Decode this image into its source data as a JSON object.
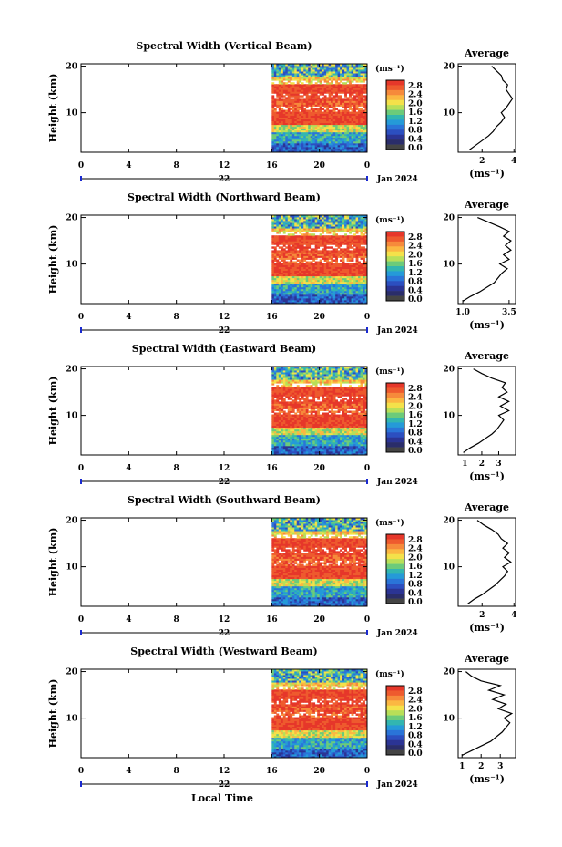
{
  "figure": {
    "xlabel": "Local Time",
    "date_label": "Jan 2024",
    "day_label": "22"
  },
  "chart_data": [
    {
      "type": "heatmap",
      "title": "Spectral Width (Vertical Beam)",
      "ylabel": "Height (km)",
      "xlim": [
        0,
        24
      ],
      "xticks": [
        "0",
        "4",
        "8",
        "12",
        "16",
        "20",
        "0"
      ],
      "ylim": [
        1.5,
        20.5
      ],
      "yticks": [
        "10",
        "20"
      ],
      "data_start_hour": 16,
      "colorbar": {
        "unit": "(ms⁻¹)",
        "ticks": [
          "2.8",
          "2.4",
          "2.0",
          "1.6",
          "1.2",
          "0.8",
          "0.4",
          "0.0"
        ],
        "colors": [
          "#e6372a",
          "#ee5a2e",
          "#f68a3b",
          "#fbb742",
          "#f4e14a",
          "#b8df58",
          "#6ccb7a",
          "#32b6b0",
          "#259ad8",
          "#2a74d8",
          "#2c4fc0",
          "#2b3494",
          "#2a2d6a",
          "#444444"
        ]
      },
      "profile": {
        "title": "Average",
        "xlabel": "(ms⁻¹)",
        "xlim": [
          0.5,
          4.1
        ],
        "xticks": [
          "2",
          "4"
        ],
        "heights": [
          2,
          3,
          4,
          5,
          6,
          7,
          8,
          9,
          10,
          11,
          12,
          13,
          14,
          15,
          16,
          17,
          18,
          19,
          20
        ],
        "values": [
          1.2,
          1.6,
          2.0,
          2.4,
          2.7,
          2.9,
          3.2,
          3.4,
          3.2,
          3.5,
          3.7,
          3.9,
          3.7,
          3.5,
          3.6,
          3.3,
          3.2,
          2.9,
          2.6
        ]
      }
    },
    {
      "type": "heatmap",
      "title": "Spectral Width (Northward Beam)",
      "ylabel": "Height (km)",
      "xlim": [
        0,
        24
      ],
      "xticks": [
        "0",
        "4",
        "8",
        "12",
        "16",
        "20",
        "0"
      ],
      "ylim": [
        1.5,
        20.5
      ],
      "yticks": [
        "10",
        "20"
      ],
      "data_start_hour": 16,
      "colorbar": {
        "unit": "(ms⁻¹)",
        "ticks": [
          "2.8",
          "2.4",
          "2.0",
          "1.6",
          "1.2",
          "0.8",
          "0.4",
          "0.0"
        ],
        "colors": [
          "#e6372a",
          "#ee5a2e",
          "#f68a3b",
          "#fbb742",
          "#f4e14a",
          "#b8df58",
          "#6ccb7a",
          "#32b6b0",
          "#259ad8",
          "#2a74d8",
          "#2c4fc0",
          "#2b3494",
          "#2a2d6a",
          "#444444"
        ]
      },
      "profile": {
        "title": "Average",
        "xlabel": "(ms⁻¹)",
        "xlim": [
          0.75,
          3.85
        ],
        "xticks": [
          "1.0",
          "3.5"
        ],
        "heights": [
          2,
          3,
          4,
          5,
          6,
          7,
          8,
          9,
          10,
          11,
          12,
          13,
          14,
          15,
          16,
          17,
          18,
          19,
          20
        ],
        "values": [
          1.0,
          1.4,
          1.9,
          2.3,
          2.7,
          2.9,
          3.1,
          3.4,
          3.0,
          3.5,
          3.2,
          3.6,
          3.3,
          3.6,
          3.2,
          3.5,
          3.0,
          2.4,
          1.8
        ]
      }
    },
    {
      "type": "heatmap",
      "title": "Spectral Width (Eastward Beam)",
      "ylabel": "Height (km)",
      "xlim": [
        0,
        24
      ],
      "xticks": [
        "0",
        "4",
        "8",
        "12",
        "16",
        "20",
        "0"
      ],
      "ylim": [
        1.5,
        20.5
      ],
      "yticks": [
        "10",
        "20"
      ],
      "data_start_hour": 16,
      "colorbar": {
        "unit": "(ms⁻¹)",
        "ticks": [
          "2.8",
          "2.4",
          "2.0",
          "1.6",
          "1.2",
          "0.8",
          "0.4",
          "0.0"
        ],
        "colors": [
          "#e6372a",
          "#ee5a2e",
          "#f68a3b",
          "#fbb742",
          "#f4e14a",
          "#b8df58",
          "#6ccb7a",
          "#32b6b0",
          "#259ad8",
          "#2a74d8",
          "#2c4fc0",
          "#2b3494",
          "#2a2d6a",
          "#444444"
        ]
      },
      "profile": {
        "title": "Average",
        "xlabel": "(ms⁻¹)",
        "xlim": [
          0.6,
          4.0
        ],
        "xticks": [
          "1",
          "2",
          "3"
        ],
        "heights": [
          2,
          3,
          4,
          5,
          6,
          7,
          8,
          9,
          10,
          11,
          12,
          13,
          14,
          15,
          16,
          17,
          18,
          19,
          20
        ],
        "values": [
          0.9,
          1.3,
          1.8,
          2.2,
          2.6,
          2.9,
          3.1,
          3.3,
          3.0,
          3.6,
          3.1,
          3.6,
          3.0,
          3.5,
          3.2,
          3.4,
          2.6,
          2.0,
          1.5
        ]
      }
    },
    {
      "type": "heatmap",
      "title": "Spectral Width (Southward Beam)",
      "ylabel": "Height (km)",
      "xlim": [
        0,
        24
      ],
      "xticks": [
        "0",
        "4",
        "8",
        "12",
        "16",
        "20",
        "0"
      ],
      "ylim": [
        1.5,
        20.5
      ],
      "yticks": [
        "10",
        "20"
      ],
      "data_start_hour": 16,
      "colorbar": {
        "unit": "(ms⁻¹)",
        "ticks": [
          "2.8",
          "2.4",
          "2.0",
          "1.6",
          "1.2",
          "0.8",
          "0.4",
          "0.0"
        ],
        "colors": [
          "#e6372a",
          "#ee5a2e",
          "#f68a3b",
          "#fbb742",
          "#f4e14a",
          "#b8df58",
          "#6ccb7a",
          "#32b6b0",
          "#259ad8",
          "#2a74d8",
          "#2c4fc0",
          "#2b3494",
          "#2a2d6a",
          "#444444"
        ]
      },
      "profile": {
        "title": "Average",
        "xlabel": "(ms⁻¹)",
        "xlim": [
          0.5,
          4.1
        ],
        "xticks": [
          "2",
          "4"
        ],
        "heights": [
          2,
          3,
          4,
          5,
          6,
          7,
          8,
          9,
          10,
          11,
          12,
          13,
          14,
          15,
          16,
          17,
          18,
          19,
          20
        ],
        "values": [
          1.1,
          1.5,
          2.0,
          2.4,
          2.8,
          3.1,
          3.4,
          3.6,
          3.3,
          3.8,
          3.4,
          3.7,
          3.3,
          3.6,
          3.2,
          3.0,
          2.6,
          2.1,
          1.7
        ]
      }
    },
    {
      "type": "heatmap",
      "title": "Spectral Width (Westward Beam)",
      "ylabel": "Height (km)",
      "xlim": [
        0,
        24
      ],
      "xticks": [
        "0",
        "4",
        "8",
        "12",
        "16",
        "20",
        "0"
      ],
      "ylim": [
        1.5,
        20.5
      ],
      "yticks": [
        "10",
        "20"
      ],
      "data_start_hour": 16,
      "colorbar": {
        "unit": "(ms⁻¹)",
        "ticks": [
          "2.8",
          "2.4",
          "2.0",
          "1.6",
          "1.2",
          "0.8",
          "0.4",
          "0.0"
        ],
        "colors": [
          "#e6372a",
          "#ee5a2e",
          "#f68a3b",
          "#fbb742",
          "#f4e14a",
          "#b8df58",
          "#6ccb7a",
          "#32b6b0",
          "#259ad8",
          "#2a74d8",
          "#2c4fc0",
          "#2b3494",
          "#2a2d6a",
          "#444444"
        ]
      },
      "profile": {
        "title": "Average",
        "xlabel": "(ms⁻¹)",
        "xlim": [
          0.8,
          3.8
        ],
        "xticks": [
          "1",
          "2",
          "3"
        ],
        "heights": [
          2,
          3,
          4,
          5,
          6,
          7,
          8,
          9,
          10,
          11,
          12,
          13,
          14,
          15,
          16,
          17,
          18,
          19,
          20
        ],
        "values": [
          1.0,
          1.5,
          2.0,
          2.5,
          2.8,
          3.1,
          3.3,
          3.5,
          3.2,
          3.6,
          2.9,
          3.3,
          2.6,
          3.2,
          2.4,
          3.0,
          2.0,
          1.5,
          1.2
        ]
      }
    }
  ]
}
